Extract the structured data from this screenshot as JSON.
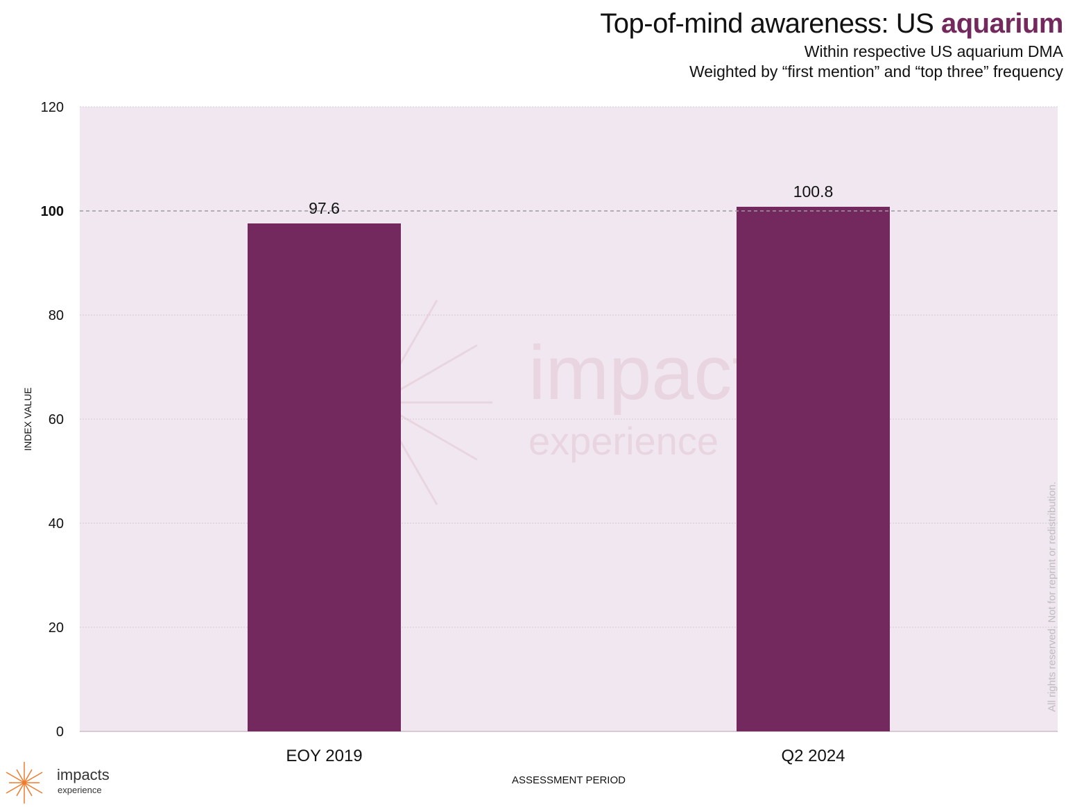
{
  "header": {
    "title_prefix": "Top-of-mind awareness: US ",
    "title_accent": "aquarium",
    "subtitle_1": "Within respective US aquarium DMA",
    "subtitle_2": "Weighted by “first mention” and “top three” frequency"
  },
  "colors": {
    "bar": "#74295e",
    "plot_bg": "#f1e7f0",
    "watermark": "#e8d5df",
    "logo": "#f07a2a"
  },
  "watermark": {
    "word": "impacts",
    "sub": "experience"
  },
  "footer": {
    "rights": "All rights reserved. Not for reprint or redistribution."
  },
  "logo": {
    "icon": "sunburst-icon",
    "word": "impacts",
    "sub": "experience"
  },
  "chart_data": {
    "type": "bar",
    "categories": [
      "EOY 2019",
      "Q2 2024"
    ],
    "values": [
      97.6,
      100.8
    ],
    "value_labels": [
      "97.6",
      "100.8"
    ],
    "xlabel": "ASSESSMENT PERIOD",
    "ylabel": "INDEX VALUE",
    "ylim": [
      0,
      120
    ],
    "yticks": [
      0,
      20,
      40,
      60,
      80,
      100,
      120
    ],
    "reference_line": 100,
    "grid": true
  }
}
